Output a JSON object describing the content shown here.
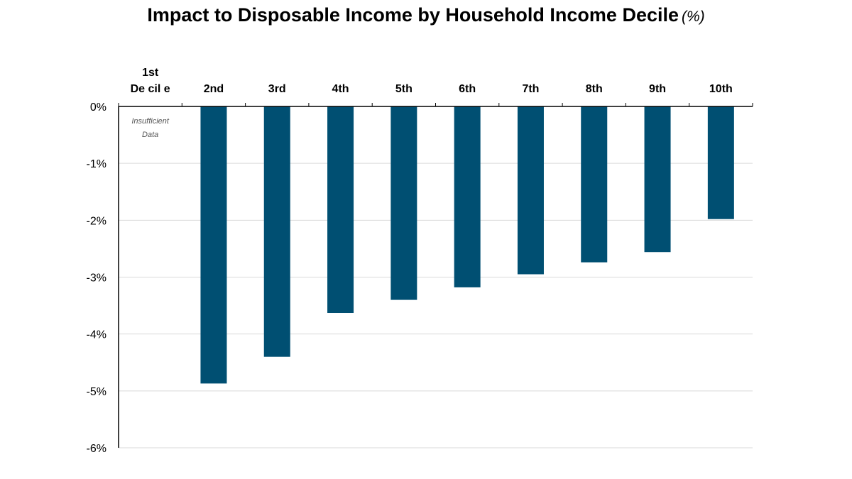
{
  "title": "Impact to Disposable Income by Household Income Decile",
  "title_unit": "(%)",
  "chart_data": {
    "type": "bar",
    "categories": [
      [
        "1st",
        "De cil e"
      ],
      [
        "2nd"
      ],
      [
        "3rd"
      ],
      [
        "4th"
      ],
      [
        "5th"
      ],
      [
        "6th"
      ],
      [
        "7th"
      ],
      [
        "8th"
      ],
      [
        "9th"
      ],
      [
        "10th"
      ]
    ],
    "values": [
      null,
      -4.87,
      -4.4,
      -3.63,
      -3.4,
      -3.18,
      -2.95,
      -2.74,
      -2.56,
      -1.98
    ],
    "annotations": [
      {
        "category_index": 0,
        "lines": [
          "Insufficient",
          "Data"
        ]
      }
    ],
    "ylim": [
      -6,
      0
    ],
    "yticks": [
      0,
      -1,
      -2,
      -3,
      -4,
      -5,
      -6
    ],
    "ytick_labels": [
      "0%",
      "-1%",
      "-2%",
      "-3%",
      "-4%",
      "-5%",
      "-6%"
    ],
    "xlabel": "",
    "ylabel": "",
    "grid": true,
    "bar_color": "#004f72",
    "grid_color": "#d9d9d9",
    "axis_color": "#000000"
  }
}
